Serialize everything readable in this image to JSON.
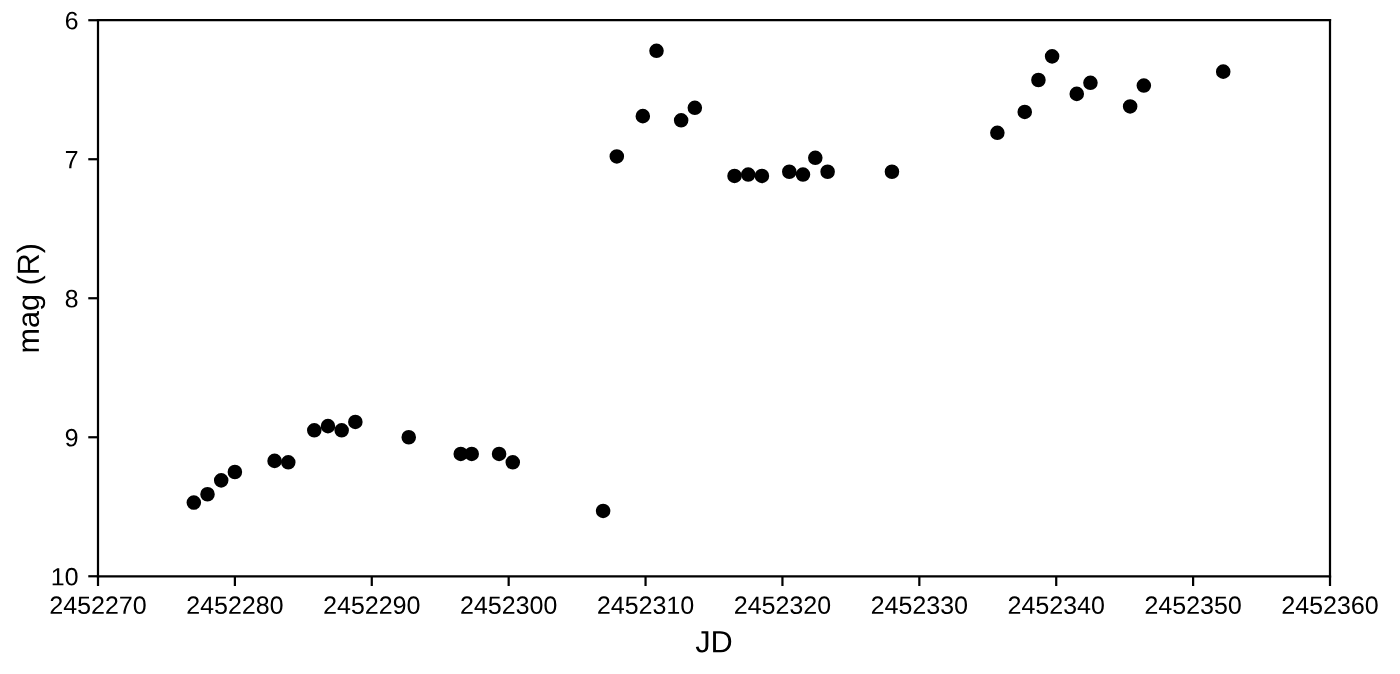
{
  "chart_data": {
    "type": "scatter",
    "xlabel": "JD",
    "ylabel": "mag (R)",
    "marker": "circle",
    "grid": false,
    "x": [
      2452277,
      2452278,
      2452279,
      2452280,
      2452282.9,
      2452283.9,
      2452285.8,
      2452286.8,
      2452287.8,
      2452288.8,
      2452292.7,
      2452296.5,
      2452297.3,
      2452299.3,
      2452300.3,
      2452306.9,
      2452307.9,
      2452309.8,
      2452310.8,
      2452312.6,
      2452313.6,
      2452316.5,
      2452317.5,
      2452318.5,
      2452320.5,
      2452321.5,
      2452322.4,
      2452323.3,
      2452328,
      2452335.7,
      2452337.7,
      2452338.7,
      2452339.7,
      2452341.5,
      2452342.5,
      2452345.4,
      2452346.4,
      2452352.2
    ],
    "series": [
      {
        "color": "#000000",
        "values": [
          9.47,
          9.41,
          9.31,
          9.25,
          9.17,
          9.18,
          8.95,
          8.92,
          8.95,
          8.89,
          9.0,
          9.12,
          9.12,
          9.12,
          9.18,
          9.53,
          6.98,
          6.69,
          6.22,
          6.72,
          6.63,
          7.12,
          7.11,
          7.12,
          7.09,
          7.11,
          6.99,
          7.09,
          7.09,
          6.81,
          6.66,
          6.43,
          6.26,
          6.53,
          6.45,
          6.62,
          6.47,
          6.37
        ]
      }
    ],
    "xlim": [
      2452270,
      2452360
    ],
    "xticks": [
      2452270,
      2452280,
      2452290,
      2452300,
      2452310,
      2452320,
      2452330,
      2452340,
      2452350,
      2452360
    ],
    "ylim": [
      10,
      6
    ],
    "yticks": [
      6,
      7,
      8,
      9,
      10
    ]
  }
}
